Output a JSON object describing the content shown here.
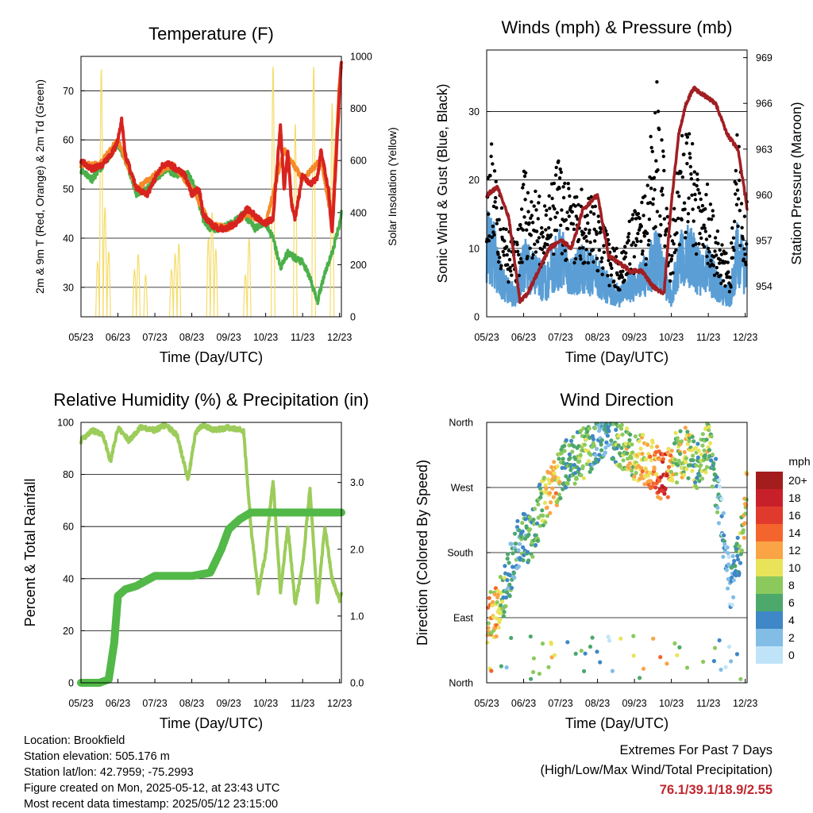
{
  "colors": {
    "temp_red": "#d8231f",
    "temp_orange": "#f58a2a",
    "dewpoint_green": "#4cb04a",
    "solar_yellow": "#f5dc6a",
    "wind_blue": "#5a9ed5",
    "gust_black": "#000000",
    "pressure_maroon": "#a11f23",
    "rh_lightgreen": "#9ccc5a",
    "rain_green": "#52b848",
    "extremes_red": "#c0262d"
  },
  "speed_colorbar": {
    "title": "mph",
    "labels": [
      "20+",
      "18",
      "16",
      "14",
      "12",
      "10",
      "8",
      "6",
      "4",
      "2",
      "0"
    ],
    "colors": [
      "#a31d1d",
      "#c8202a",
      "#e03a2c",
      "#f4652d",
      "#faa446",
      "#e9e35a",
      "#8bc95d",
      "#4da86b",
      "#3f87c6",
      "#82bde6",
      "#bfe4f8"
    ]
  },
  "chart_data": [
    {
      "type": "line",
      "title": "Temperature (F)",
      "xlabel": "Time (Day/UTC)",
      "ylabel": "2m & 9m T (Red, Orange) & 2m Td (Green)",
      "y2label": "Solar Insolation (Yellow)",
      "x_ticks": [
        "05/23",
        "06/23",
        "07/23",
        "08/23",
        "09/23",
        "10/23",
        "11/23",
        "12/23"
      ],
      "y_ticks": [
        30,
        40,
        50,
        60,
        70
      ],
      "y2_ticks": [
        0,
        200,
        400,
        600,
        800,
        1000
      ],
      "ylim": [
        24,
        77
      ],
      "y2lim": [
        0,
        1000
      ],
      "grid": "horizontal",
      "series": [
        {
          "name": "2m T",
          "color": "red",
          "x": [
            0,
            0.3,
            0.6,
            0.9,
            1.0,
            1.1,
            1.2,
            1.5,
            1.8,
            2.0,
            2.2,
            2.4,
            2.6,
            2.8,
            3.0,
            3.2,
            3.3,
            3.5,
            3.7,
            3.9,
            4.2,
            4.5,
            4.8,
            5.0,
            5.2,
            5.4,
            5.5,
            5.6,
            5.7,
            5.8,
            6.0,
            6.2,
            6.4,
            6.5,
            6.7,
            6.8,
            6.9,
            7.0,
            7.05
          ],
          "y": [
            56,
            54,
            55,
            58,
            60,
            64,
            57,
            50,
            49,
            52,
            55,
            55,
            54,
            53,
            49,
            50,
            45,
            43,
            42,
            42,
            43,
            46,
            44,
            43,
            44,
            63,
            50,
            58,
            47,
            44,
            53,
            51,
            52,
            58,
            50,
            41,
            55,
            70,
            76
          ]
        },
        {
          "name": "9m T",
          "color": "orange",
          "x": [
            0,
            0.5,
            1.0,
            1.5,
            2.0,
            2.5,
            3.0,
            3.5,
            4.0,
            4.5,
            5.0,
            5.5,
            6.0,
            6.5,
            6.8,
            7.0,
            7.05
          ],
          "y": [
            55,
            55,
            60,
            50,
            53,
            55,
            50,
            43,
            42,
            45,
            43,
            58,
            52,
            56,
            43,
            72,
            75
          ]
        },
        {
          "name": "2m Td",
          "color": "green",
          "x": [
            0,
            0.3,
            0.6,
            0.9,
            1.0,
            1.2,
            1.5,
            1.8,
            2.0,
            2.3,
            2.6,
            2.9,
            3.1,
            3.3,
            3.5,
            3.8,
            4.1,
            4.4,
            4.7,
            5.0,
            5.2,
            5.4,
            5.6,
            5.8,
            6.0,
            6.2,
            6.4,
            6.6,
            6.8,
            7.0,
            7.05
          ],
          "y": [
            54,
            52,
            55,
            58,
            59,
            56,
            49,
            50,
            52,
            54,
            53,
            53,
            50,
            44,
            42,
            42,
            43,
            45,
            42,
            43,
            40,
            34,
            37,
            36,
            35,
            32,
            27,
            33,
            37,
            43,
            45
          ]
        },
        {
          "name": "Solar Insolation",
          "color": "yellow",
          "axis": "right",
          "peaks_day": [
            0.45,
            0.55,
            0.65,
            0.75,
            1.45,
            1.55,
            1.75,
            2.45,
            2.55,
            2.65,
            3.45,
            3.55,
            3.65,
            4.45,
            4.55,
            5.2,
            5.8,
            6.3,
            6.8
          ],
          "peaks_value": [
            210,
            950,
            420,
            250,
            180,
            240,
            160,
            180,
            240,
            280,
            300,
            400,
            260,
            160,
            300,
            960,
            740,
            960,
            820
          ]
        }
      ]
    },
    {
      "type": "line",
      "title": "Winds (mph) & Pressure (mb)",
      "xlabel": "Time (Day/UTC)",
      "ylabel": "Sonic Wind & Gust (Blue, Black)",
      "y2label": "Station Pressure (Maroon)",
      "x_ticks": [
        "05/23",
        "06/23",
        "07/23",
        "08/23",
        "09/23",
        "10/23",
        "11/23",
        "12/23"
      ],
      "y_ticks": [
        0,
        10,
        20,
        30
      ],
      "y2_ticks": [
        954,
        957,
        960,
        963,
        966,
        969
      ],
      "ylim": [
        0,
        39
      ],
      "y2lim": [
        952,
        969.5
      ],
      "grid": "horizontal",
      "series": [
        {
          "name": "Sonic Wind",
          "color": "blue",
          "x": [
            0,
            0.2,
            0.5,
            0.8,
            1.0,
            1.3,
            1.6,
            2.0,
            2.3,
            2.6,
            3.0,
            3.3,
            3.6,
            4.0,
            4.3,
            4.6,
            5.0,
            5.2,
            5.5,
            5.8,
            6.0,
            6.3,
            6.6,
            6.8,
            7.0,
            7.05
          ],
          "y": [
            11,
            9,
            4,
            3,
            8,
            6,
            5,
            9,
            6,
            7,
            6,
            4,
            3,
            5,
            6,
            9,
            3,
            8,
            9,
            6,
            7,
            4,
            3,
            10,
            6,
            8
          ]
        },
        {
          "name": "Gust",
          "color": "black",
          "x": [
            0,
            0.2,
            0.5,
            0.8,
            1.0,
            1.3,
            1.6,
            2.0,
            2.3,
            2.6,
            3.0,
            3.3,
            3.6,
            4.0,
            4.3,
            4.6,
            5.0,
            5.2,
            5.5,
            5.8,
            6.0,
            6.3,
            6.6,
            6.8,
            7.0,
            7.05
          ],
          "y": [
            20,
            17,
            9,
            8,
            15,
            13,
            11,
            17,
            12,
            13,
            12,
            8,
            7,
            11,
            13,
            25,
            7,
            18,
            19,
            13,
            14,
            8,
            6,
            20,
            11,
            14
          ]
        },
        {
          "name": "Station Pressure",
          "color": "maroon",
          "axis": "right",
          "x": [
            0,
            0.3,
            0.6,
            0.9,
            1.1,
            1.4,
            1.7,
            2.0,
            2.3,
            2.6,
            3.0,
            3.3,
            3.6,
            3.9,
            4.2,
            4.5,
            4.8,
            5.0,
            5.2,
            5.4,
            5.6,
            5.9,
            6.2,
            6.5,
            6.8,
            7.0,
            7.05
          ],
          "y": [
            960,
            960.5,
            958.5,
            953,
            953.5,
            955,
            956.5,
            957,
            956.5,
            959,
            960,
            956,
            955.5,
            955,
            955,
            954,
            953.5,
            959.5,
            964,
            966,
            967,
            966.5,
            966,
            964,
            963,
            960,
            959
          ]
        }
      ]
    },
    {
      "type": "line",
      "title": "Relative Humidity (%) & Precipitation (in)",
      "xlabel": "Time (Day/UTC)",
      "ylabel": "Percent & Total Rainfall",
      "x_ticks": [
        "05/23",
        "06/23",
        "07/23",
        "08/23",
        "09/23",
        "10/23",
        "11/23",
        "12/23"
      ],
      "y_ticks": [
        0,
        20,
        40,
        60,
        80,
        100
      ],
      "y2_ticks": [
        "0.0",
        "1.0",
        "2.0",
        "3.0"
      ],
      "ylim": [
        0,
        100
      ],
      "y2lim": [
        0,
        3.9
      ],
      "grid": "horizontal",
      "series": [
        {
          "name": "Relative Humidity",
          "color": "lightgreen",
          "x": [
            0,
            0.3,
            0.6,
            0.8,
            1.0,
            1.3,
            1.6,
            2.0,
            2.3,
            2.6,
            2.9,
            3.1,
            3.3,
            3.6,
            4.0,
            4.4,
            4.6,
            4.8,
            5.0,
            5.2,
            5.4,
            5.6,
            5.8,
            6.0,
            6.2,
            6.4,
            6.6,
            6.8,
            7.0,
            7.05
          ],
          "y": [
            93,
            97,
            95,
            85,
            98,
            93,
            98,
            97,
            99,
            95,
            78,
            96,
            99,
            97,
            98,
            97,
            60,
            35,
            50,
            78,
            35,
            60,
            30,
            45,
            75,
            30,
            60,
            40,
            32,
            35
          ]
        },
        {
          "name": "Total Rainfall",
          "color": "green",
          "axis": "right",
          "x": [
            0,
            0.5,
            0.75,
            0.9,
            1.0,
            1.2,
            1.5,
            2.0,
            2.5,
            3.0,
            3.5,
            3.8,
            4.0,
            4.3,
            4.6,
            4.8,
            5.0,
            5.5,
            6.0,
            6.5,
            7.0,
            7.05
          ],
          "y": [
            0,
            0,
            0.05,
            0.6,
            1.3,
            1.4,
            1.45,
            1.6,
            1.6,
            1.6,
            1.65,
            2.0,
            2.3,
            2.45,
            2.55,
            2.55,
            2.55,
            2.55,
            2.55,
            2.55,
            2.55,
            2.55
          ]
        }
      ]
    },
    {
      "type": "scatter",
      "title": "Wind Direction",
      "xlabel": "Time (Day/UTC)",
      "ylabel": "Direction (Colored By Speed)",
      "x_ticks": [
        "05/23",
        "06/23",
        "07/23",
        "08/23",
        "09/23",
        "10/23",
        "11/23",
        "12/23"
      ],
      "y_ticks": [
        "North",
        "East",
        "South",
        "West",
        "North"
      ],
      "ylim": [
        0,
        360
      ],
      "legend": "right",
      "color_by": "speed (mph)",
      "trend_x": [
        0,
        0.3,
        0.6,
        0.9,
        1.2,
        1.5,
        1.8,
        2.1,
        2.4,
        2.7,
        3.0,
        3.3,
        3.6,
        3.9,
        4.2,
        4.5,
        4.8,
        5.1,
        5.4,
        5.7,
        6.0,
        6.3,
        6.6,
        6.9,
        7.05
      ],
      "trend_deg": [
        90,
        100,
        150,
        200,
        200,
        250,
        270,
        300,
        310,
        320,
        340,
        350,
        330,
        310,
        310,
        300,
        280,
        310,
        320,
        300,
        330,
        250,
        130,
        200,
        270
      ],
      "trend_speed": [
        12,
        10,
        4,
        5,
        6,
        8,
        12,
        6,
        6,
        8,
        4,
        3,
        8,
        9,
        10,
        12,
        17,
        8,
        10,
        6,
        9,
        3,
        2,
        8,
        12
      ]
    }
  ],
  "info": {
    "location": "Location: Brookfield",
    "elevation": "Station elevation: 505.176 m",
    "latlon": "Station lat/lon: 42.7959; -75.2993",
    "created": "Figure created on Mon, 2025-05-12, at 23:43 UTC",
    "timestamp": "Most recent data timestamp: 2025/05/12 23:15:00"
  },
  "extremes": {
    "title": "Extremes For Past 7 Days",
    "subtitle": "(High/Low/Max Wind/Total Precipitation)",
    "values": "76.1/39.1/18.9/2.55"
  }
}
